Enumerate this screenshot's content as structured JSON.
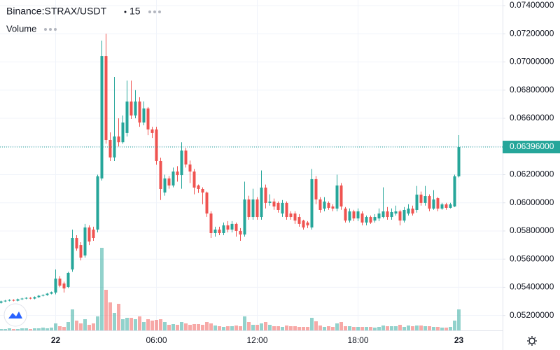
{
  "chart_data": {
    "type": "candlestick",
    "title": "Binance:STRAX/USDT",
    "interval": "15",
    "volume_label": "Volume",
    "categories": [
      null,
      null,
      null,
      null,
      null,
      null,
      null,
      null,
      null,
      null,
      null,
      null,
      null,
      "22",
      null,
      null,
      null,
      null,
      null,
      null,
      null,
      null,
      null,
      null,
      null,
      null,
      null,
      null,
      null,
      null,
      null,
      null,
      null,
      null,
      null,
      null,
      null,
      "06:00",
      null,
      null,
      null,
      null,
      null,
      null,
      null,
      null,
      null,
      null,
      null,
      null,
      null,
      null,
      null,
      null,
      null,
      null,
      null,
      null,
      null,
      null,
      null,
      "12:00",
      null,
      null,
      null,
      null,
      null,
      null,
      null,
      null,
      null,
      null,
      null,
      null,
      null,
      null,
      null,
      null,
      null,
      null,
      null,
      null,
      null,
      null,
      null,
      "18:00",
      null,
      null,
      null,
      null,
      null,
      null,
      null,
      null,
      null,
      null,
      null,
      null,
      null,
      null,
      null,
      null,
      null,
      null,
      null,
      null,
      null,
      null,
      null,
      "23"
    ],
    "open": [
      0.0529,
      0.053,
      0.05305,
      0.0531,
      0.05305,
      0.05315,
      0.0532,
      0.05325,
      0.0532,
      0.0533,
      0.0534,
      0.05345,
      0.05355,
      0.05363,
      0.05462,
      0.05427,
      0.05402,
      0.05527,
      0.0575,
      0.057,
      0.05626,
      0.05825,
      0.0581,
      0.0581,
      0.06173,
      0.07042,
      0.06446,
      0.06322,
      0.06471,
      0.0643,
      0.06496,
      0.06719,
      0.0662,
      0.06719,
      0.0657,
      0.0667,
      0.06521,
      0.06521,
      0.06297,
      0.06073,
      0.06173,
      0.06123,
      0.06222,
      0.06197,
      0.06371,
      0.06272,
      0.06222,
      0.06123,
      0.06098,
      0.06073,
      0.05924,
      0.05785,
      0.0581,
      0.05785,
      0.0584,
      0.0581,
      0.0585,
      0.058,
      0.05775,
      0.06024,
      0.05899,
      0.06024,
      0.05899,
      0.06108,
      0.05999,
      0.06009,
      0.05999,
      0.05924,
      0.05999,
      0.05924,
      0.05924,
      0.05899,
      0.05874,
      0.0586,
      0.05825,
      0.06168,
      0.06024,
      0.05959,
      0.05999,
      0.05974,
      0.05959,
      0.06123,
      0.05959,
      0.05874,
      0.05939,
      0.05889,
      0.05924,
      0.0586,
      0.05899,
      0.05874,
      0.05889,
      0.05899,
      0.05939,
      0.05899,
      0.05924,
      0.05939,
      0.05874,
      0.05924,
      0.05959,
      0.05949,
      0.06058,
      0.05999,
      0.06048,
      0.05959,
      0.06033,
      0.05959,
      0.05989,
      0.05964,
      0.05974,
      0.06188
    ],
    "high": [
      0.05305,
      0.0531,
      0.05315,
      0.05315,
      0.0532,
      0.05325,
      0.0533,
      0.0533,
      0.05335,
      0.05345,
      0.0535,
      0.0536,
      0.0537,
      0.05527,
      0.0548,
      0.0544,
      0.0551,
      0.0581,
      0.0577,
      0.0572,
      0.0585,
      0.0584,
      0.0583,
      0.062,
      0.07152,
      0.07201,
      0.065,
      0.06893,
      0.066,
      0.0662,
      0.06868,
      0.06868,
      0.068,
      0.0675,
      0.0672,
      0.0668,
      0.0654,
      0.0654,
      0.0632,
      0.062,
      0.0619,
      0.0625,
      0.0626,
      0.0643,
      0.0639,
      0.063,
      0.0624,
      0.0613,
      0.0611,
      0.0608,
      0.0594,
      0.0583,
      0.0583,
      0.0586,
      0.0587,
      0.0587,
      0.0586,
      0.0582,
      0.0615,
      0.0605,
      0.061,
      0.0604,
      0.0623,
      0.0613,
      0.0606,
      0.0603,
      0.0601,
      0.0602,
      0.0601,
      0.0594,
      0.0594,
      0.0592,
      0.0588,
      0.0587,
      0.0624,
      0.0619,
      0.0604,
      0.0604,
      0.0601,
      0.0599,
      0.062,
      0.0614,
      0.0597,
      0.0596,
      0.0595,
      0.0596,
      0.0594,
      0.0591,
      0.0591,
      0.0592,
      0.0596,
      0.0611,
      0.0597,
      0.0596,
      0.0598,
      0.0595,
      0.0597,
      0.0599,
      0.0598,
      0.0612,
      0.0608,
      0.0612,
      0.0606,
      0.0609,
      0.0604,
      0.06,
      0.06,
      0.06,
      0.062,
      0.06481
    ],
    "low": [
      0.05285,
      0.05295,
      0.053,
      0.053,
      0.053,
      0.0531,
      0.05315,
      0.05315,
      0.05315,
      0.05325,
      0.05335,
      0.0534,
      0.0535,
      0.0535,
      0.054,
      0.05363,
      0.05395,
      0.0551,
      0.0566,
      0.05591,
      0.05611,
      0.057,
      0.0573,
      0.0579,
      0.06158,
      0.0642,
      0.06297,
      0.06297,
      0.064,
      0.0642,
      0.06471,
      0.06595,
      0.066,
      0.0654,
      0.0655,
      0.0648,
      0.0646,
      0.0627,
      0.0602,
      0.0605,
      0.061,
      0.0611,
      0.0615,
      0.061,
      0.0625,
      0.0614,
      0.0606,
      0.0607,
      0.0599,
      0.059,
      0.0575,
      0.0576,
      0.0577,
      0.0577,
      0.0579,
      0.0579,
      0.0576,
      0.0573,
      0.0576,
      0.0588,
      0.0588,
      0.0588,
      0.0588,
      0.0596,
      0.0598,
      0.0595,
      0.0593,
      0.059,
      0.0588,
      0.0588,
      0.0585,
      0.0583,
      0.0581,
      0.0582,
      0.0581,
      0.0599,
      0.0593,
      0.0594,
      0.0595,
      0.0594,
      0.0594,
      0.0595,
      0.0586,
      0.0586,
      0.0587,
      0.0587,
      0.0584,
      0.0584,
      0.0585,
      0.0586,
      0.0587,
      0.0589,
      0.0588,
      0.0588,
      0.0591,
      0.0584,
      0.0586,
      0.0591,
      0.0591,
      0.0593,
      0.0598,
      0.0598,
      0.0594,
      0.0595,
      0.0594,
      0.0595,
      0.0595,
      0.0596,
      0.0597,
      0.0618
    ],
    "close": [
      0.053,
      0.05305,
      0.0531,
      0.05305,
      0.05315,
      0.0532,
      0.05325,
      0.0532,
      0.0533,
      0.0534,
      0.05345,
      0.05355,
      0.05365,
      0.05462,
      0.05412,
      0.05392,
      0.05502,
      0.0575,
      0.05676,
      0.05611,
      0.05825,
      0.05725,
      0.0575,
      0.06188,
      0.07042,
      0.06446,
      0.06322,
      0.06471,
      0.0643,
      0.0657,
      0.06719,
      0.0662,
      0.06719,
      0.0657,
      0.0667,
      0.06521,
      0.06496,
      0.06297,
      0.06098,
      0.06173,
      0.06123,
      0.06222,
      0.06197,
      0.06371,
      0.06272,
      0.06222,
      0.06108,
      0.06098,
      0.06073,
      0.05924,
      0.05785,
      0.0581,
      0.05785,
      0.0584,
      0.0581,
      0.0585,
      0.058,
      0.05775,
      0.06024,
      0.05899,
      0.06024,
      0.05899,
      0.06108,
      0.05999,
      0.06009,
      0.05974,
      0.05949,
      0.05999,
      0.05899,
      0.05899,
      0.05874,
      0.0585,
      0.05825,
      0.0584,
      0.06168,
      0.06024,
      0.05949,
      0.06009,
      0.05964,
      0.05959,
      0.06123,
      0.05974,
      0.05874,
      0.05939,
      0.05889,
      0.05939,
      0.0586,
      0.05899,
      0.0586,
      0.05899,
      0.05924,
      0.05939,
      0.05899,
      0.05934,
      0.05939,
      0.05874,
      0.05949,
      0.05959,
      0.05924,
      0.06058,
      0.05999,
      0.06048,
      0.05959,
      0.06024,
      0.05959,
      0.05989,
      0.05964,
      0.05989,
      0.06188,
      0.06396
    ],
    "volume": [
      2,
      2,
      3,
      2,
      2,
      3,
      3,
      2,
      3,
      3,
      4,
      3,
      4,
      10,
      6,
      5,
      12,
      30,
      14,
      10,
      16,
      8,
      10,
      20,
      118,
      58,
      40,
      25,
      38,
      16,
      18,
      18,
      16,
      20,
      12,
      16,
      14,
      15,
      16,
      12,
      8,
      9,
      8,
      12,
      10,
      8,
      9,
      9,
      8,
      12,
      10,
      7,
      6,
      5,
      6,
      6,
      7,
      6,
      20,
      12,
      8,
      8,
      10,
      12,
      8,
      6,
      6,
      5,
      7,
      6,
      6,
      5,
      5,
      5,
      18,
      13,
      7,
      5,
      6,
      5,
      10,
      12,
      6,
      6,
      5,
      5,
      5,
      5,
      5,
      4,
      5,
      7,
      6,
      6,
      6,
      8,
      5,
      7,
      6,
      7,
      7,
      6,
      6,
      5,
      5,
      4,
      4,
      5,
      14,
      30
    ],
    "volume_ylim": [
      0,
      130
    ],
    "ylim": [
      0.05094,
      0.0744
    ],
    "yticks": [
      {
        "value": 0.052,
        "label": "0.05200000"
      },
      {
        "value": 0.054,
        "label": "0.05400000"
      },
      {
        "value": 0.056,
        "label": "0.05600000"
      },
      {
        "value": 0.058,
        "label": "0.05800000"
      },
      {
        "value": 0.06,
        "label": "0.06000000"
      },
      {
        "value": 0.062,
        "label": "0.06200000"
      },
      {
        "value": 0.064,
        "label": "0.06400000"
      },
      {
        "value": 0.066,
        "label": "0.06600000"
      },
      {
        "value": 0.068,
        "label": "0.06800000"
      },
      {
        "value": 0.07,
        "label": "0.07000000"
      },
      {
        "value": 0.072,
        "label": "0.07200000"
      },
      {
        "value": 0.074,
        "label": "0.07400000"
      }
    ],
    "last_price": {
      "value": 0.06396,
      "label": "0.06396000"
    },
    "up_color": "#26a69a",
    "down_color": "#ef5350",
    "grid": true
  }
}
